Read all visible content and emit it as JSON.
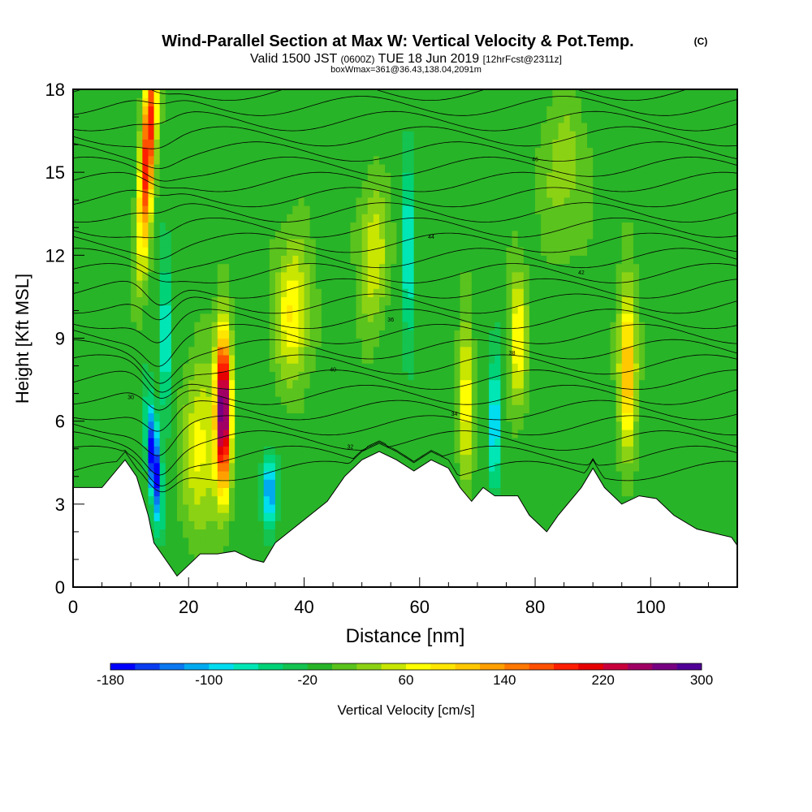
{
  "header": {
    "title": "Wind-Parallel Section at Max W: Vertical Velocity & Pot.Temp.",
    "copyright": "(C)",
    "valid_prefix": "Valid 1500 JST",
    "valid_utc": "(0600Z)",
    "valid_date": "TUE 18 Jun 2019",
    "forecast": "[12hrFcst@2311z]",
    "boxinfo": "boxWmax=361@36.43,138.04,2091m"
  },
  "chart_data": {
    "type": "heatmap",
    "xlabel": "Distance [nm]",
    "ylabel": "Height [Kft MSL]",
    "xlim": [
      0,
      115
    ],
    "ylim": [
      0,
      18
    ],
    "x_ticks": [
      0,
      20,
      40,
      60,
      80,
      100
    ],
    "y_ticks": [
      0,
      3,
      6,
      9,
      12,
      15,
      18
    ],
    "grid": false,
    "colorbar": {
      "label": "Vertical Velocity [cm/s]",
      "range": [
        -180,
        300
      ],
      "step": 20,
      "tick_labels": [
        "-180",
        "-100",
        "-20",
        "60",
        "140",
        "220",
        "300"
      ],
      "colors": [
        "#0000ff",
        "#0a3cf0",
        "#0a78f0",
        "#00aaf0",
        "#00dcf0",
        "#00e6b4",
        "#00d278",
        "#14c350",
        "#28b428",
        "#5ac31e",
        "#8cd214",
        "#c8e600",
        "#ffff00",
        "#ffe600",
        "#ffc800",
        "#ffa000",
        "#ff7800",
        "#ff5000",
        "#ff1e00",
        "#e60000",
        "#c8003c",
        "#a00064",
        "#780082",
        "#500096"
      ]
    },
    "terrain_profile": [
      [
        0,
        3.6
      ],
      [
        5,
        3.6
      ],
      [
        9,
        4.6
      ],
      [
        11,
        4.0
      ],
      [
        13,
        2.6
      ],
      [
        14,
        1.6
      ],
      [
        16,
        1.0
      ],
      [
        18,
        0.4
      ],
      [
        20,
        0.8
      ],
      [
        22,
        1.2
      ],
      [
        25,
        1.2
      ],
      [
        28,
        1.3
      ],
      [
        31,
        1.0
      ],
      [
        33,
        0.9
      ],
      [
        35,
        1.6
      ],
      [
        38,
        2.1
      ],
      [
        41,
        2.6
      ],
      [
        44,
        3.1
      ],
      [
        47,
        4.0
      ],
      [
        50,
        4.6
      ],
      [
        53,
        4.9
      ],
      [
        56,
        4.6
      ],
      [
        59,
        4.2
      ],
      [
        62,
        4.6
      ],
      [
        65,
        4.3
      ],
      [
        67,
        3.6
      ],
      [
        69,
        3.1
      ],
      [
        71,
        3.6
      ],
      [
        73,
        3.3
      ],
      [
        77,
        3.3
      ],
      [
        79,
        2.6
      ],
      [
        82,
        2.0
      ],
      [
        84,
        2.6
      ],
      [
        88,
        3.6
      ],
      [
        90,
        4.3
      ],
      [
        92,
        3.6
      ],
      [
        95,
        3.0
      ],
      [
        98,
        3.3
      ],
      [
        101,
        3.2
      ],
      [
        104,
        2.6
      ],
      [
        108,
        2.1
      ],
      [
        114,
        1.8
      ],
      [
        115,
        1.5
      ]
    ],
    "velocity_features": [
      {
        "x": 13,
        "y": 16,
        "w": 220,
        "sx": 1.2,
        "sy": 4.0,
        "tilt": 0.25
      },
      {
        "x": 14,
        "y": 4.5,
        "w": -190,
        "sx": 1.0,
        "sy": 2.0,
        "tilt": -0.35
      },
      {
        "x": 16,
        "y": 9,
        "w": -90,
        "sx": 1.0,
        "sy": 2.5,
        "tilt": 0.0
      },
      {
        "x": 26,
        "y": 6.5,
        "w": 300,
        "sx": 1.3,
        "sy": 2.8,
        "tilt": 0.0
      },
      {
        "x": 22,
        "y": 5,
        "w": 80,
        "sx": 3.0,
        "sy": 3.0,
        "tilt": 0.0
      },
      {
        "x": 34,
        "y": 3.5,
        "w": -120,
        "sx": 1.2,
        "sy": 1.2,
        "tilt": 0.0
      },
      {
        "x": 38,
        "y": 10,
        "w": 90,
        "sx": 3.0,
        "sy": 2.5,
        "tilt": 0.0
      },
      {
        "x": 52,
        "y": 12,
        "w": 70,
        "sx": 2.5,
        "sy": 2.5,
        "tilt": 0.0
      },
      {
        "x": 58,
        "y": 12,
        "w": -90,
        "sx": 0.8,
        "sy": 3.5,
        "tilt": 0.0
      },
      {
        "x": 68,
        "y": 7,
        "w": 90,
        "sx": 1.2,
        "sy": 3.0,
        "tilt": 0.0
      },
      {
        "x": 73,
        "y": 6,
        "w": -110,
        "sx": 0.8,
        "sy": 2.5,
        "tilt": 0.0
      },
      {
        "x": 77,
        "y": 9,
        "w": 90,
        "sx": 1.5,
        "sy": 2.5,
        "tilt": 0.0
      },
      {
        "x": 96,
        "y": 8,
        "w": 140,
        "sx": 1.5,
        "sy": 2.8,
        "tilt": 0.0
      },
      {
        "x": 85,
        "y": 15,
        "w": 40,
        "sx": 4.0,
        "sy": 3.0,
        "tilt": 0.0
      }
    ],
    "theta_contour_labels": [
      "30",
      "32",
      "34",
      "36",
      "38",
      "40",
      "42",
      "44",
      "46"
    ]
  }
}
